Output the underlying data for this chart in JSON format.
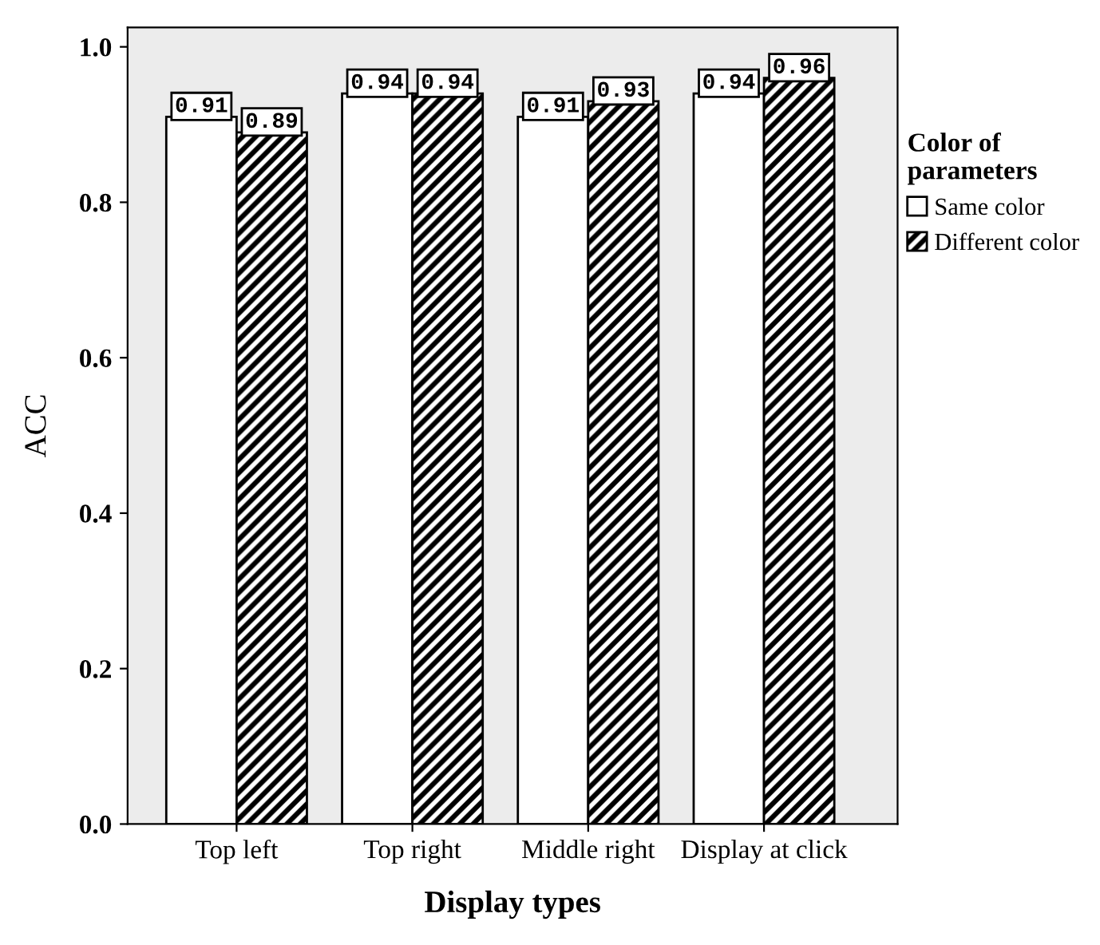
{
  "chart_data": {
    "type": "bar",
    "xlabel": "Display types",
    "ylabel": "ACC",
    "legend_title": "Color of\nparameters",
    "categories": [
      "Top left",
      "Top right",
      "Middle right",
      "Display at click"
    ],
    "series": [
      {
        "name": "Same color",
        "color": "#ffffff",
        "values": [
          0.91,
          0.94,
          0.91,
          0.94
        ]
      },
      {
        "name": "Different color",
        "color": "#000000",
        "values": [
          0.89,
          0.94,
          0.93,
          0.96
        ]
      }
    ],
    "ylim": [
      0,
      1.025
    ],
    "yticks": [
      {
        "value": 0,
        "label": "0.0"
      },
      {
        "value": 0.2,
        "label": "0.2"
      },
      {
        "value": 0.4,
        "label": "0.4"
      },
      {
        "value": 0.6,
        "label": "0.6"
      },
      {
        "value": 0.8,
        "label": "0.8"
      },
      {
        "value": 1.0,
        "label": "1.0"
      }
    ],
    "data_labels": true,
    "legend": "right",
    "grid": false
  }
}
